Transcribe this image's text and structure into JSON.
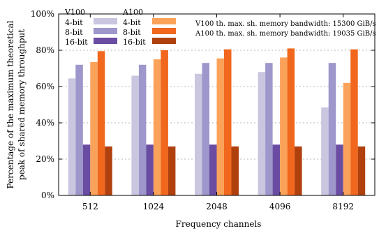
{
  "chart_data": {
    "type": "bar",
    "xlabel": "Frequency channels",
    "ylabel_lines": [
      "Percentage of the maximum theoretical",
      "peak of shared memory throughput"
    ],
    "categories": [
      "512",
      "1024",
      "2048",
      "4096",
      "8192"
    ],
    "ylim": [
      0,
      100
    ],
    "yticks": [
      0,
      20,
      40,
      60,
      80,
      100
    ],
    "ytick_labels": [
      "0%",
      "20%",
      "40%",
      "60%",
      "80%",
      "100%"
    ],
    "grid": "horizontal dashed",
    "legend_placement": "top-left",
    "legend_groups": [
      {
        "title": "V100",
        "entries": [
          "4-bit",
          "8-bit",
          "16-bit"
        ]
      },
      {
        "title": "A100",
        "entries": [
          "4-bit",
          "8-bit",
          "16-bit"
        ]
      }
    ],
    "series": [
      {
        "group": "V100",
        "name": "4-bit",
        "color": "#cac6e0",
        "values": [
          64.5,
          66,
          67,
          68,
          48.5
        ]
      },
      {
        "group": "V100",
        "name": "8-bit",
        "color": "#9d97cc",
        "values": [
          72,
          72,
          73,
          73,
          73
        ]
      },
      {
        "group": "V100",
        "name": "16-bit",
        "color": "#6a4da3",
        "values": [
          28,
          28,
          28,
          28,
          28
        ]
      },
      {
        "group": "A100",
        "name": "4-bit",
        "color": "#fba25a",
        "values": [
          73.5,
          75,
          75.5,
          76,
          62
        ]
      },
      {
        "group": "A100",
        "name": "8-bit",
        "color": "#f0671d",
        "values": [
          79.5,
          80,
          80.5,
          81,
          80.5
        ]
      },
      {
        "group": "A100",
        "name": "16-bit",
        "color": "#b0410f",
        "values": [
          27,
          27,
          27,
          27,
          27
        ]
      }
    ],
    "annotations": [
      "V100 th. max. sh. memory bandwidth: 15300 GiB/s",
      "A100 th. max. sh. memory bandwidth: 19035 GiB/s"
    ]
  }
}
